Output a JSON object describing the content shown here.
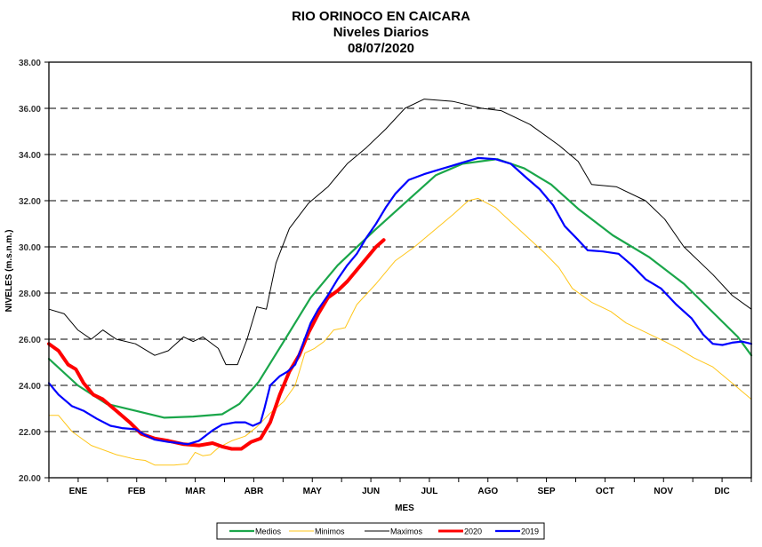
{
  "chart_data": {
    "type": "line",
    "title": "RIO ORINOCO EN CAICARA",
    "subtitle": "Niveles Diarios",
    "date": "08/07/2020",
    "xlabel": "MES",
    "ylabel": "NIVELES (m.s.n.m.)",
    "xlim": [
      0,
      365
    ],
    "ylim": [
      20,
      38
    ],
    "yticks": [
      "20.00",
      "22.00",
      "24.00",
      "26.00",
      "28.00",
      "30.00",
      "32.00",
      "34.00",
      "36.00",
      "38.00"
    ],
    "ytick_values": [
      20,
      22,
      24,
      26,
      28,
      30,
      32,
      34,
      36,
      38
    ],
    "months": [
      "ENE",
      "FEB",
      "MAR",
      "ABR",
      "MAY",
      "JUN",
      "JUL",
      "AGO",
      "SEP",
      "OCT",
      "NOV",
      "DIC"
    ],
    "grid": "horizontal-dashed",
    "legend_position": "bottom",
    "series": [
      {
        "name": "Medios",
        "color": "#1aa64a",
        "points": [
          [
            0,
            25.15
          ],
          [
            15,
            24.0
          ],
          [
            30,
            23.2
          ],
          [
            45,
            22.9
          ],
          [
            60,
            22.6
          ],
          [
            75,
            22.65
          ],
          [
            90,
            22.75
          ],
          [
            99,
            23.2
          ],
          [
            109,
            24.15
          ],
          [
            122,
            25.9
          ],
          [
            136,
            27.8
          ],
          [
            150,
            29.2
          ],
          [
            169,
            30.7
          ],
          [
            187,
            32.05
          ],
          [
            201,
            33.1
          ],
          [
            215,
            33.6
          ],
          [
            233,
            33.8
          ],
          [
            247,
            33.4
          ],
          [
            261,
            32.7
          ],
          [
            275,
            31.65
          ],
          [
            293,
            30.5
          ],
          [
            312,
            29.55
          ],
          [
            330,
            28.4
          ],
          [
            344,
            27.25
          ],
          [
            358,
            26.1
          ],
          [
            365,
            25.3
          ]
        ]
      },
      {
        "name": "Minimos",
        "color": "#ffc61a",
        "points": [
          [
            0,
            22.7
          ],
          [
            5,
            22.7
          ],
          [
            12,
            22.0
          ],
          [
            22,
            21.4
          ],
          [
            35,
            21.0
          ],
          [
            45,
            20.8
          ],
          [
            50,
            20.75
          ],
          [
            55,
            20.55
          ],
          [
            65,
            20.55
          ],
          [
            72,
            20.6
          ],
          [
            76,
            21.1
          ],
          [
            80,
            20.95
          ],
          [
            84,
            21.0
          ],
          [
            88,
            21.3
          ],
          [
            95,
            21.6
          ],
          [
            102,
            21.8
          ],
          [
            108,
            22.2
          ],
          [
            115,
            22.8
          ],
          [
            122,
            23.3
          ],
          [
            128,
            24.0
          ],
          [
            133,
            25.4
          ],
          [
            138,
            25.6
          ],
          [
            143,
            25.9
          ],
          [
            148,
            26.4
          ],
          [
            154,
            26.5
          ],
          [
            160,
            27.5
          ],
          [
            170,
            28.4
          ],
          [
            180,
            29.4
          ],
          [
            190,
            30.0
          ],
          [
            200,
            30.7
          ],
          [
            210,
            31.4
          ],
          [
            218,
            32.0
          ],
          [
            223,
            32.1
          ],
          [
            232,
            31.7
          ],
          [
            245,
            30.7
          ],
          [
            258,
            29.7
          ],
          [
            265,
            29.1
          ],
          [
            272,
            28.2
          ],
          [
            282,
            27.6
          ],
          [
            292,
            27.2
          ],
          [
            300,
            26.7
          ],
          [
            310,
            26.3
          ],
          [
            320,
            25.9
          ],
          [
            327,
            25.6
          ],
          [
            335,
            25.2
          ],
          [
            345,
            24.8
          ],
          [
            355,
            24.1
          ],
          [
            365,
            23.4
          ]
        ]
      },
      {
        "name": "Maximos",
        "color": "#000000",
        "points": [
          [
            0,
            27.3
          ],
          [
            8,
            27.1
          ],
          [
            15,
            26.4
          ],
          [
            22,
            26.0
          ],
          [
            28,
            26.4
          ],
          [
            35,
            26.0
          ],
          [
            45,
            25.8
          ],
          [
            55,
            25.3
          ],
          [
            62,
            25.5
          ],
          [
            70,
            26.1
          ],
          [
            75,
            25.9
          ],
          [
            80,
            26.1
          ],
          [
            88,
            25.6
          ],
          [
            92,
            24.9
          ],
          [
            98,
            24.9
          ],
          [
            103,
            26.0
          ],
          [
            108,
            27.4
          ],
          [
            113,
            27.3
          ],
          [
            118,
            29.3
          ],
          [
            125,
            30.8
          ],
          [
            135,
            31.9
          ],
          [
            145,
            32.6
          ],
          [
            155,
            33.6
          ],
          [
            165,
            34.3
          ],
          [
            175,
            35.1
          ],
          [
            185,
            36.0
          ],
          [
            195,
            36.4
          ],
          [
            210,
            36.3
          ],
          [
            225,
            36.0
          ],
          [
            235,
            35.9
          ],
          [
            250,
            35.3
          ],
          [
            265,
            34.4
          ],
          [
            275,
            33.7
          ],
          [
            282,
            32.7
          ],
          [
            295,
            32.6
          ],
          [
            310,
            32.0
          ],
          [
            320,
            31.2
          ],
          [
            330,
            30.0
          ],
          [
            345,
            28.8
          ],
          [
            355,
            27.9
          ],
          [
            365,
            27.3
          ]
        ]
      },
      {
        "name": "2020",
        "color": "#ff0000",
        "points": [
          [
            0,
            25.8
          ],
          [
            5,
            25.5
          ],
          [
            10,
            24.9
          ],
          [
            14,
            24.7
          ],
          [
            18,
            24.1
          ],
          [
            23,
            23.6
          ],
          [
            28,
            23.4
          ],
          [
            35,
            22.9
          ],
          [
            42,
            22.4
          ],
          [
            48,
            21.9
          ],
          [
            55,
            21.7
          ],
          [
            62,
            21.6
          ],
          [
            70,
            21.45
          ],
          [
            78,
            21.4
          ],
          [
            85,
            21.5
          ],
          [
            90,
            21.35
          ],
          [
            95,
            21.25
          ],
          [
            100,
            21.25
          ],
          [
            105,
            21.55
          ],
          [
            110,
            21.7
          ],
          [
            115,
            22.4
          ],
          [
            120,
            23.6
          ],
          [
            125,
            24.6
          ],
          [
            130,
            25.3
          ],
          [
            135,
            26.3
          ],
          [
            140,
            27.1
          ],
          [
            145,
            27.8
          ],
          [
            150,
            28.1
          ],
          [
            155,
            28.5
          ],
          [
            160,
            29.0
          ],
          [
            165,
            29.5
          ],
          [
            170,
            30.0
          ],
          [
            174,
            30.3
          ]
        ]
      },
      {
        "name": "2019",
        "color": "#0000ff",
        "points": [
          [
            0,
            24.1
          ],
          [
            5,
            23.6
          ],
          [
            12,
            23.1
          ],
          [
            18,
            22.9
          ],
          [
            25,
            22.55
          ],
          [
            32,
            22.25
          ],
          [
            38,
            22.15
          ],
          [
            45,
            22.1
          ],
          [
            50,
            21.85
          ],
          [
            55,
            21.65
          ],
          [
            62,
            21.55
          ],
          [
            68,
            21.5
          ],
          [
            72,
            21.45
          ],
          [
            78,
            21.6
          ],
          [
            85,
            22.05
          ],
          [
            90,
            22.3
          ],
          [
            97,
            22.4
          ],
          [
            102,
            22.4
          ],
          [
            106,
            22.25
          ],
          [
            110,
            22.4
          ],
          [
            112,
            23.0
          ],
          [
            115,
            24.0
          ],
          [
            120,
            24.4
          ],
          [
            124,
            24.6
          ],
          [
            128,
            24.9
          ],
          [
            132,
            25.8
          ],
          [
            136,
            26.7
          ],
          [
            140,
            27.3
          ],
          [
            145,
            27.9
          ],
          [
            150,
            28.6
          ],
          [
            155,
            29.2
          ],
          [
            160,
            29.7
          ],
          [
            165,
            30.4
          ],
          [
            170,
            31.0
          ],
          [
            175,
            31.7
          ],
          [
            180,
            32.3
          ],
          [
            187,
            32.9
          ],
          [
            195,
            33.15
          ],
          [
            205,
            33.4
          ],
          [
            215,
            33.65
          ],
          [
            223,
            33.85
          ],
          [
            232,
            33.8
          ],
          [
            240,
            33.6
          ],
          [
            248,
            33.0
          ],
          [
            255,
            32.5
          ],
          [
            262,
            31.8
          ],
          [
            268,
            30.9
          ],
          [
            275,
            30.3
          ],
          [
            280,
            29.85
          ],
          [
            288,
            29.8
          ],
          [
            296,
            29.7
          ],
          [
            303,
            29.2
          ],
          [
            310,
            28.6
          ],
          [
            318,
            28.2
          ],
          [
            326,
            27.5
          ],
          [
            334,
            26.9
          ],
          [
            340,
            26.2
          ],
          [
            345,
            25.8
          ],
          [
            350,
            25.75
          ],
          [
            355,
            25.85
          ],
          [
            360,
            25.9
          ],
          [
            365,
            25.8
          ]
        ]
      }
    ]
  }
}
